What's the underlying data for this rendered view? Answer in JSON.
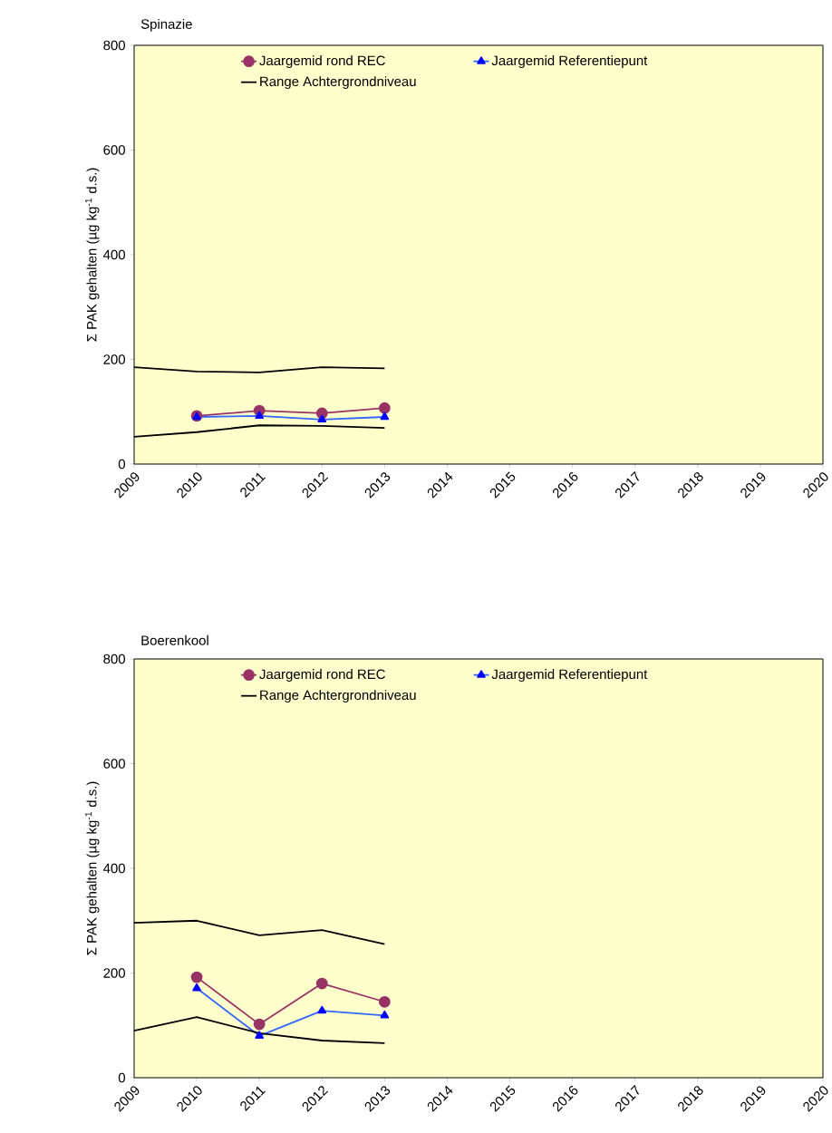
{
  "chart_data": [
    {
      "type": "line",
      "title": "Spinazie",
      "ylabel": "Σ PAK gehalten (µg kg$^{-1}$ d.s.)",
      "xlim": [
        2009,
        2020
      ],
      "xticks": [
        2009,
        2010,
        2011,
        2012,
        2013,
        2014,
        2015,
        2016,
        2017,
        2018,
        2019,
        2020
      ],
      "ylim": [
        0,
        800
      ],
      "yticks": [
        0,
        200,
        400,
        600,
        800
      ],
      "legend": "top",
      "series": [
        {
          "name": "Jaargemid rond REC",
          "color": "#993366",
          "marker": "circle",
          "x": [
            2010,
            2011,
            2012,
            2013
          ],
          "values": [
            92,
            102,
            97,
            107
          ]
        },
        {
          "name": "Jaargemid Referentiepunt",
          "color": "#3366ff",
          "marker": "triangle",
          "x": [
            2010,
            2011,
            2012,
            2013
          ],
          "values": [
            90,
            92,
            85,
            90
          ]
        },
        {
          "name": "Range Achtergrondniveau",
          "color": "#000000",
          "marker": "none",
          "x": [
            2009,
            2010,
            2011,
            2012,
            2013
          ],
          "values": [
            185,
            177,
            175,
            185,
            183
          ]
        },
        {
          "color": "#000000",
          "marker": "none",
          "x": [
            2009,
            2010,
            2011,
            2012,
            2013
          ],
          "values": [
            52,
            61,
            74,
            73,
            69
          ]
        }
      ]
    },
    {
      "type": "line",
      "title": "Boerenkool",
      "ylabel": "Σ PAK gehalten (µg kg$^{-1}$ d.s.)",
      "xlim": [
        2009,
        2020
      ],
      "xticks": [
        2009,
        2010,
        2011,
        2012,
        2013,
        2014,
        2015,
        2016,
        2017,
        2018,
        2019,
        2020
      ],
      "ylim": [
        0,
        800
      ],
      "yticks": [
        0,
        200,
        400,
        600,
        800
      ],
      "legend": "top",
      "series": [
        {
          "name": "Jaargemid rond REC",
          "color": "#993366",
          "marker": "circle",
          "x": [
            2010,
            2011,
            2012,
            2013
          ],
          "values": [
            192,
            102,
            180,
            145
          ]
        },
        {
          "name": "Jaargemid Referentiepunt",
          "color": "#3366ff",
          "marker": "triangle",
          "x": [
            2010,
            2011,
            2012,
            2013
          ],
          "values": [
            171,
            80,
            128,
            119
          ]
        },
        {
          "name": "Range Achtergrondniveau",
          "color": "#000000",
          "marker": "none",
          "x": [
            2009,
            2010,
            2011,
            2012,
            2013
          ],
          "values": [
            296,
            300,
            272,
            282,
            255
          ]
        },
        {
          "color": "#000000",
          "marker": "none",
          "x": [
            2009,
            2010,
            2011,
            2012,
            2013
          ],
          "values": [
            90,
            116,
            85,
            71,
            66
          ]
        }
      ]
    }
  ]
}
